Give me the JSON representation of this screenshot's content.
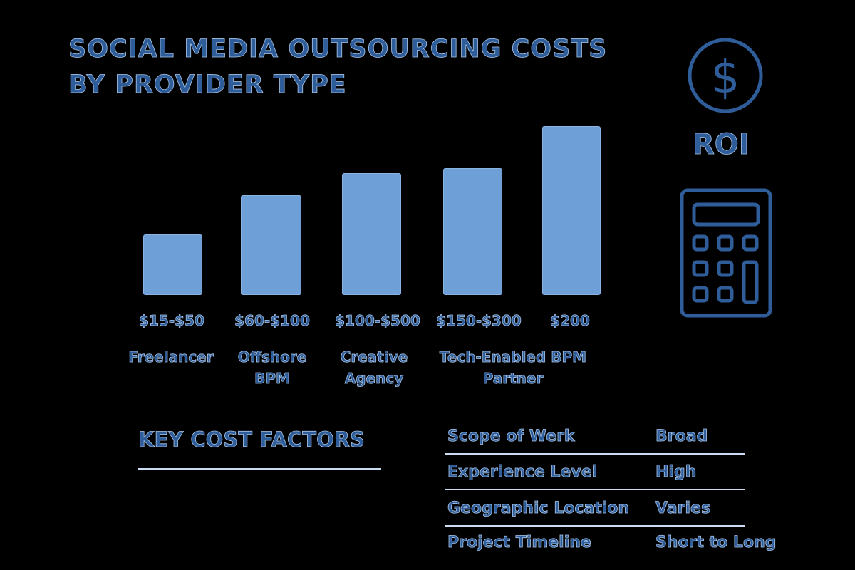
{
  "title_lines": [
    "SOCIAL MEDIA OUTSOURCING COSTS",
    "BY PROVIDER TYPE"
  ],
  "colors": {
    "background": "#000000",
    "bar": "#6e9fd6",
    "text": "#2f5d99",
    "text_outline": "#a9c6ea"
  },
  "icons": [
    "dollar-circle-icon",
    "calculator-icon"
  ],
  "roi_label": "ROI",
  "chart_data": {
    "type": "bar",
    "title": "SOCIAL MEDIA OUTSOURCING COSTS BY PROVIDER TYPE",
    "categories": [
      "Freelancer",
      "Offshore\nBPM",
      "Creative\nAgency",
      "Tech-Enabled BPM\nPartner",
      ""
    ],
    "price_labels": [
      "$15-$50",
      "$60-$100",
      "$100-$500",
      "$150-$300",
      "$200"
    ],
    "values_relative_percent": [
      36,
      59,
      72,
      75,
      100
    ],
    "xlabel": "",
    "ylabel": "",
    "grid": false,
    "axes_shown": false
  },
  "factors": {
    "heading": "KEY COST FACTORS",
    "rows": [
      {
        "label": "Scope of Werk",
        "value": "Broad"
      },
      {
        "label": "Experience Level",
        "value": "High"
      },
      {
        "label": "Geographic Location",
        "value": "Varies"
      },
      {
        "label": "Project Timeline",
        "value": "Short to Long"
      }
    ]
  }
}
